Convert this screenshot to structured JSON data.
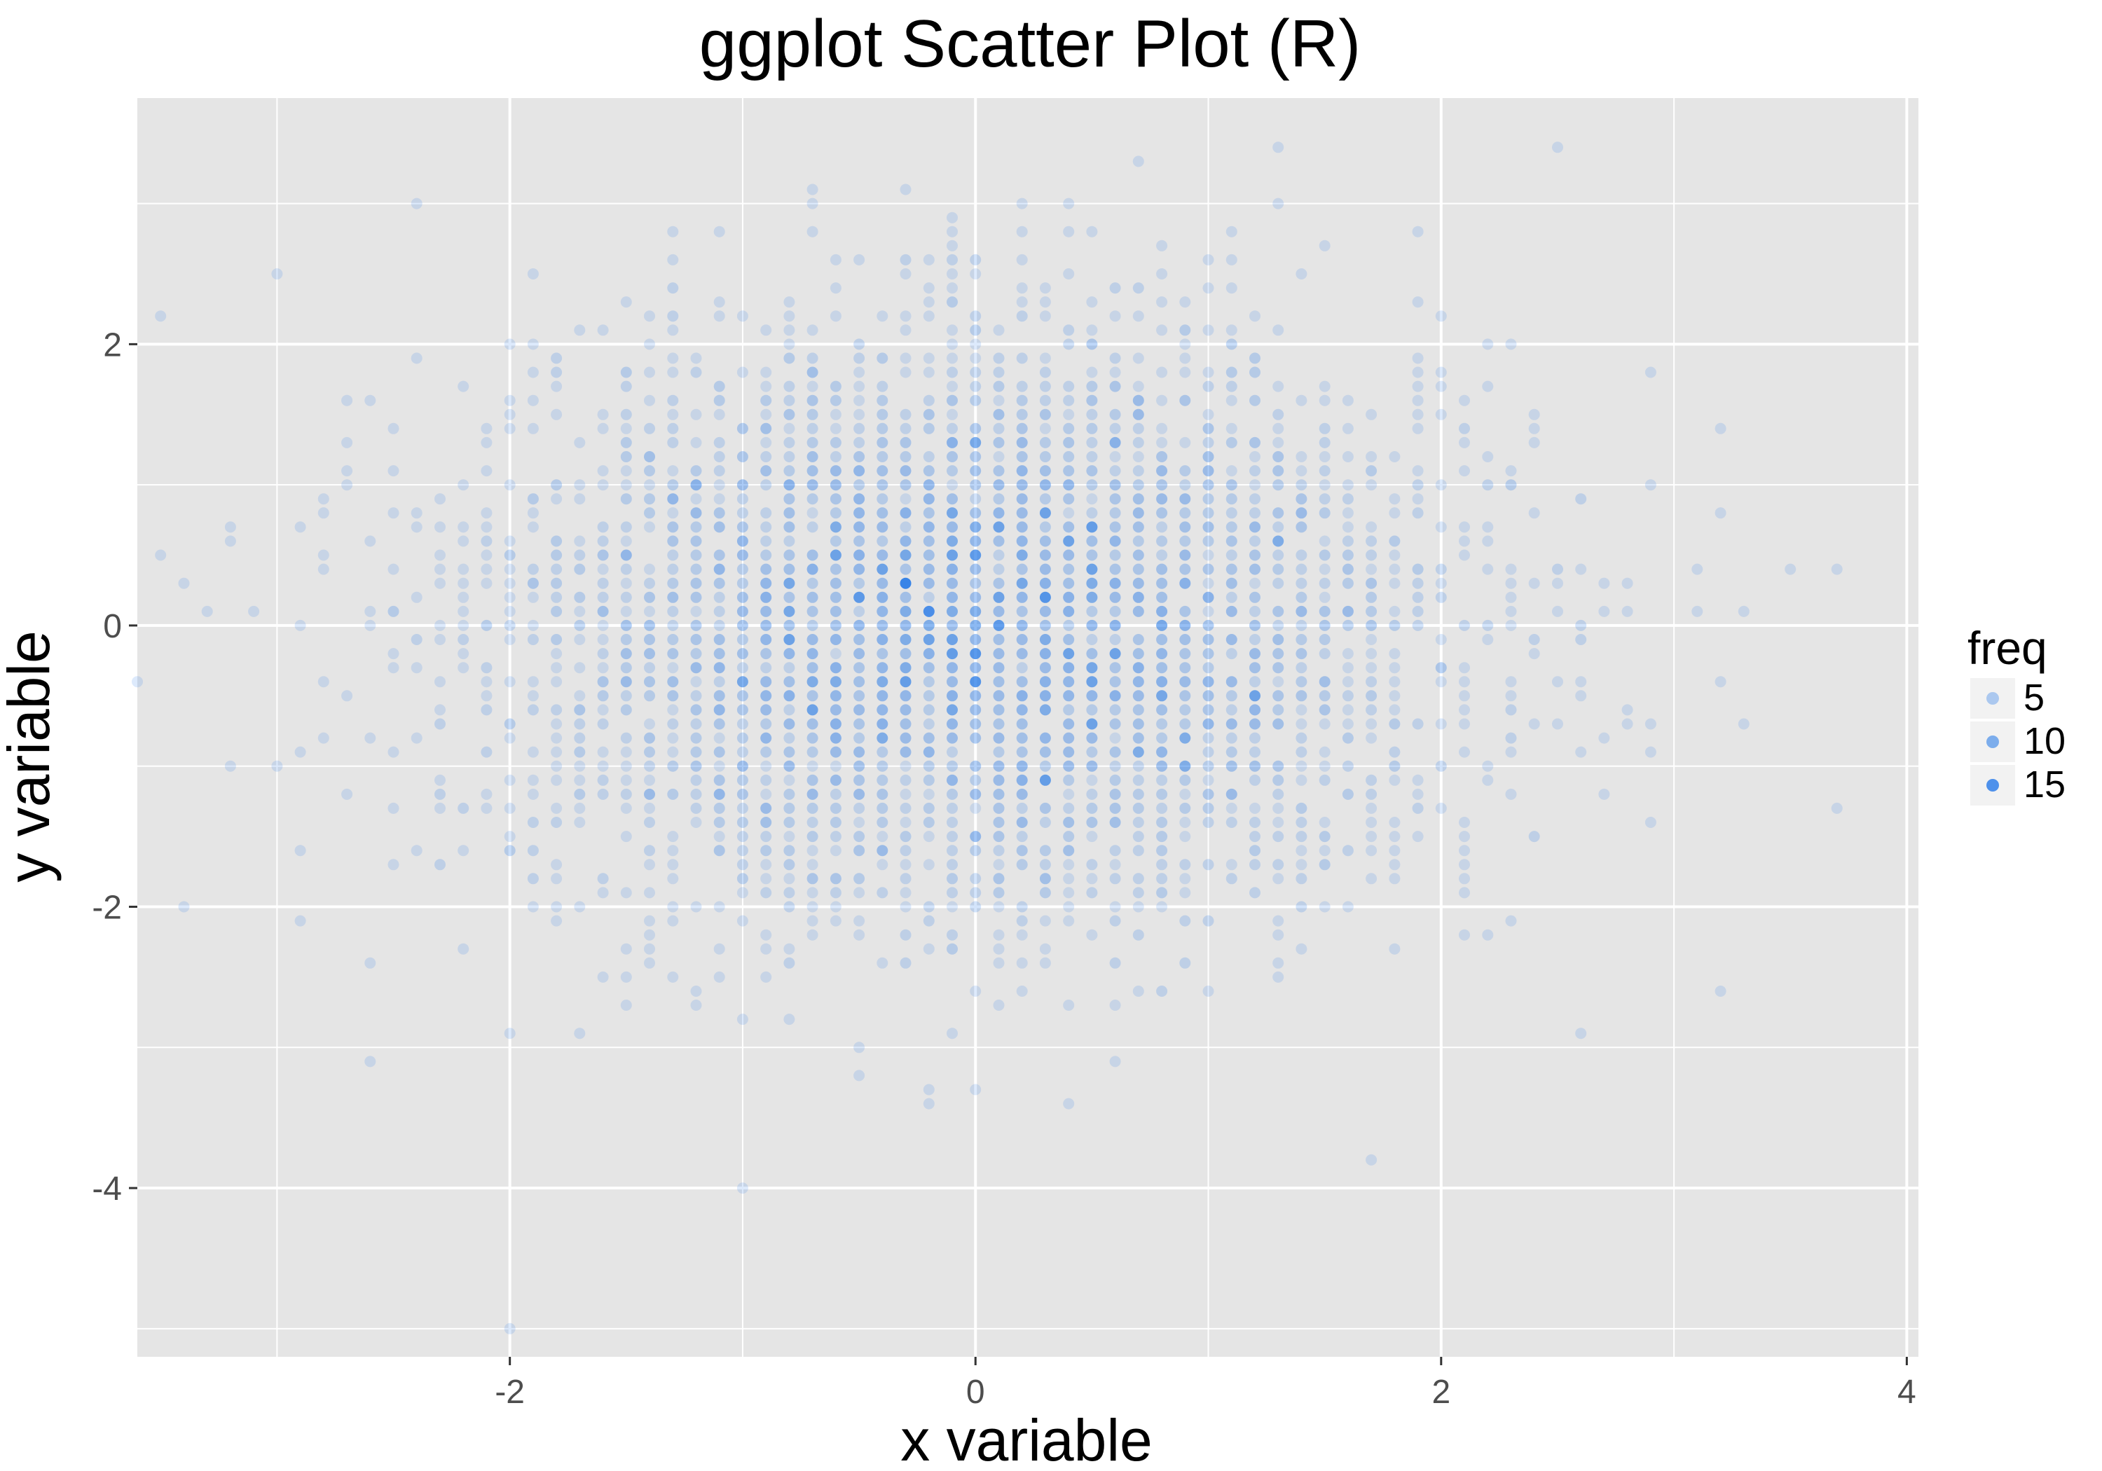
{
  "chart_data": {
    "type": "scatter",
    "title": "ggplot Scatter Plot (R)",
    "xlabel": "x variable",
    "ylabel": "y variable",
    "xlim": [
      -3.6,
      4.05
    ],
    "ylim": [
      -5.2,
      3.75
    ],
    "x_ticks": [
      -2,
      0,
      2,
      4
    ],
    "x_tick_labels": [
      "-2",
      "0",
      "2",
      "4"
    ],
    "y_ticks": [
      -4,
      -2,
      0,
      2
    ],
    "y_tick_labels": [
      "-4",
      "-2",
      "0",
      "2"
    ],
    "grid": true,
    "panel_background": "#e5e5e5",
    "grid_color": "#ffffff",
    "point_color": "#1a73e8",
    "bin_width": 0.1,
    "point_count_approx": 5000,
    "distribution": "bivariate standard normal, each point is a 0.1-binned (x, y) location",
    "legend": {
      "title": "freq",
      "position": "right",
      "entries": [
        {
          "label": "5",
          "value": 5
        },
        {
          "label": "10",
          "value": 10
        },
        {
          "label": "15",
          "value": 15
        }
      ],
      "alpha_range": [
        0.15,
        0.85
      ],
      "freq_range": [
        1,
        17
      ]
    },
    "outliers": [
      {
        "x": -3.6,
        "y": -0.4
      },
      {
        "x": -3.5,
        "y": 2.2
      },
      {
        "x": -3.5,
        "y": 0.5
      },
      {
        "x": -3.4,
        "y": 0.25
      },
      {
        "x": -3.4,
        "y": -2.0
      },
      {
        "x": -3.2,
        "y": 0.7
      },
      {
        "x": -3.1,
        "y": 0.15
      },
      {
        "x": -2.9,
        "y": -2.1
      },
      {
        "x": -2.9,
        "y": -1.6
      },
      {
        "x": -2.6,
        "y": -3.1
      },
      {
        "x": -2.4,
        "y": 3.0
      },
      {
        "x": -2.0,
        "y": -4.95
      },
      {
        "x": -2.0,
        "y": -2.85
      },
      {
        "x": -1.0,
        "y": -4.0
      },
      {
        "x": -0.7,
        "y": 3.1
      },
      {
        "x": -0.2,
        "y": -3.4
      },
      {
        "x": 0.0,
        "y": -3.25
      },
      {
        "x": 1.3,
        "y": 3.35
      },
      {
        "x": 1.7,
        "y": -3.8
      },
      {
        "x": 2.5,
        "y": 3.35
      },
      {
        "x": 2.6,
        "y": -2.9
      },
      {
        "x": 3.5,
        "y": 0.4
      },
      {
        "x": 3.7,
        "y": 0.4
      },
      {
        "x": 3.3,
        "y": 0.15
      },
      {
        "x": 3.3,
        "y": -0.65
      },
      {
        "x": 2.9,
        "y": 1.75
      },
      {
        "x": 2.9,
        "y": -1.4
      }
    ]
  }
}
